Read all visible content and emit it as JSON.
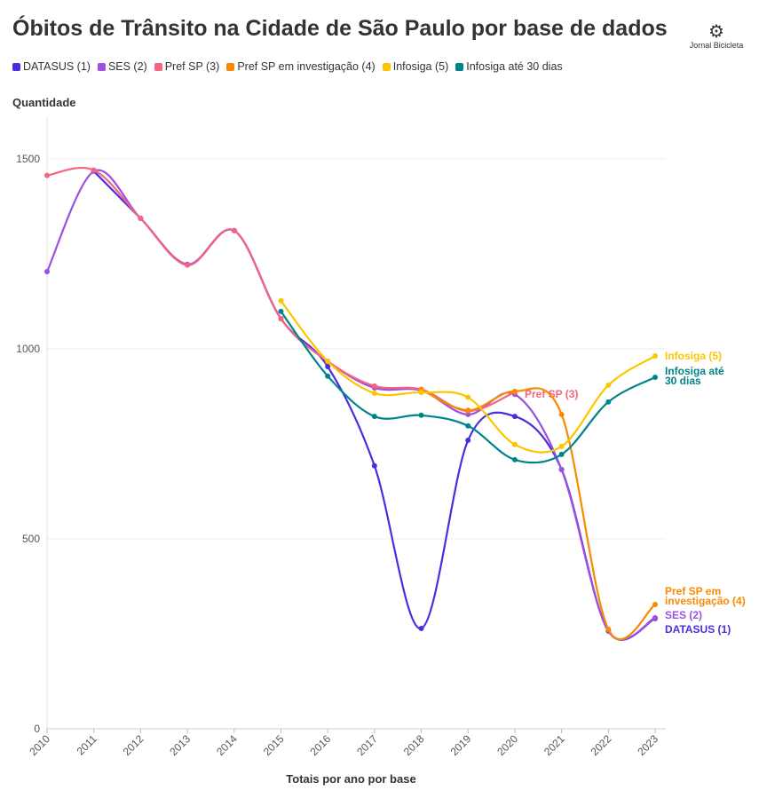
{
  "title": "Óbitos de Trânsito na Cidade de São Paulo por base de dados",
  "logo_text": "Jornal Bicicleta",
  "chart_data": {
    "type": "line",
    "title": "Óbitos de Trânsito na Cidade de São Paulo por base de dados",
    "xlabel": "Totais por ano por base",
    "ylabel": "Quantidade",
    "ylim": [
      0,
      1600
    ],
    "yticks": [
      0,
      500,
      1000,
      1500
    ],
    "grid": true,
    "legend": "top",
    "x": [
      2010,
      2011,
      2012,
      2013,
      2014,
      2015,
      2016,
      2017,
      2018,
      2019,
      2020,
      2021,
      2022,
      2023
    ],
    "series": [
      {
        "name": "DATASUS (1)",
        "end_label": "DATASUS (1)",
        "color": "#4a2de0",
        "values": [
          null,
          1467,
          1343,
          1222,
          1311,
          1079,
          953,
          692,
          264,
          759,
          822,
          682,
          257,
          290
        ]
      },
      {
        "name": "SES (2)",
        "end_label": "SES (2)",
        "color": "#9b51e0",
        "values": [
          1203,
          1467,
          1343,
          1222,
          1311,
          1079,
          967,
          897,
          890,
          827,
          880,
          682,
          257,
          292
        ]
      },
      {
        "name": "Pref SP (3)",
        "end_label": "Pref SP (3)",
        "color": "#f4647f",
        "values": [
          1456,
          1470,
          1343,
          1220,
          1311,
          1079,
          967,
          902,
          893,
          836,
          886,
          null,
          null,
          null
        ]
      },
      {
        "name": "Pref SP em investigação (4)",
        "end_label": "Pref SP em investigação (4)",
        "color": "#f98a00",
        "values": [
          null,
          null,
          null,
          null,
          null,
          null,
          null,
          null,
          893,
          838,
          888,
          827,
          262,
          327
        ]
      },
      {
        "name": "Infosiga (5)",
        "end_label": "Infosiga (5)",
        "color": "#fdc500",
        "values": [
          null,
          null,
          null,
          null,
          null,
          1126,
          967,
          883,
          885,
          872,
          748,
          743,
          904,
          981
        ]
      },
      {
        "name": "Infosiga até 30 dias",
        "end_label": "Infosiga até 30 dias",
        "color": "#00848a",
        "values": [
          null,
          null,
          null,
          null,
          null,
          1098,
          928,
          822,
          825,
          797,
          708,
          722,
          860,
          925
        ]
      }
    ]
  }
}
